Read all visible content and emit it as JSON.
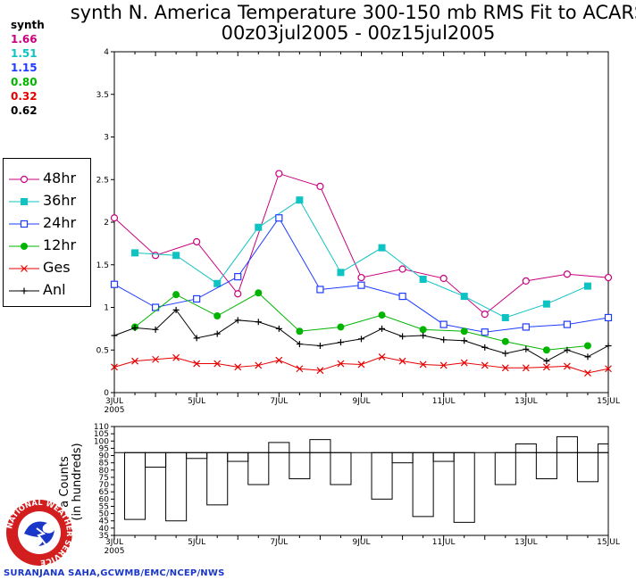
{
  "title": {
    "line1": "synth N. America Temperature 300-150 mb RMS Fit to ACARS",
    "line2": "00z03jul2005 - 00z15jul2005"
  },
  "summary": {
    "label": "synth",
    "values": [
      {
        "text": "1.66",
        "color": "#c8007e"
      },
      {
        "text": "1.51",
        "color": "#0fc3c3"
      },
      {
        "text": "1.15",
        "color": "#1e3cff"
      },
      {
        "text": "0.80",
        "color": "#00b400"
      },
      {
        "text": "0.32",
        "color": "#e60000"
      },
      {
        "text": "0.62",
        "color": "#000000"
      }
    ]
  },
  "legend": [
    {
      "label": "48hr",
      "color": "#c8007e",
      "marker": "open-circle"
    },
    {
      "label": "36hr",
      "color": "#0fc3c3",
      "marker": "filled-square"
    },
    {
      "label": "24hr",
      "color": "#1e3cff",
      "marker": "open-square"
    },
    {
      "label": "12hr",
      "color": "#00b400",
      "marker": "filled-circle"
    },
    {
      "label": "Ges",
      "color": "#e60000",
      "marker": "x"
    },
    {
      "label": "Anl",
      "color": "#000000",
      "marker": "plus"
    }
  ],
  "count_axis_label": {
    "line1": "a Counts",
    "line2": "(in hundreds)"
  },
  "credit": "SURANJANA SAHA,GCWMB/EMC/NCEP/NWS",
  "logo_text": "NATIONAL WEATHER SERVICE",
  "chart_data": [
    {
      "type": "line",
      "title": "synth N. America Temperature 300-150 mb RMS Fit to ACARS",
      "x": [
        3,
        3.5,
        4,
        4.5,
        5,
        5.5,
        6,
        6.5,
        7,
        7.5,
        8,
        8.5,
        9,
        9.5,
        10,
        10.5,
        11,
        11.5,
        12,
        12.5,
        13,
        13.5,
        14,
        14.5,
        15
      ],
      "xlim": [
        3,
        15
      ],
      "ylim": [
        0,
        4
      ],
      "x_tick_labels": [
        "3JUL",
        "5JUL",
        "7JUL",
        "9JUL",
        "11JUL",
        "13JUL",
        "15JUL"
      ],
      "x_tick_values": [
        3,
        5,
        7,
        9,
        11,
        13,
        15
      ],
      "x_year_label": "2005",
      "y_tick_labels": [
        "0",
        "0.5",
        "1",
        "1.5",
        "2",
        "2.5",
        "3",
        "3.5",
        "4"
      ],
      "y_tick_values": [
        0,
        0.5,
        1,
        1.5,
        2,
        2.5,
        3,
        3.5,
        4
      ],
      "series": [
        {
          "name": "48hr",
          "color": "#c8007e",
          "marker": "open-circle",
          "x": [
            3,
            4,
            5,
            6,
            7,
            8,
            9,
            10,
            11,
            12,
            13,
            14,
            15
          ],
          "values": [
            2.05,
            1.61,
            1.77,
            1.16,
            2.57,
            2.42,
            1.35,
            1.45,
            1.34,
            0.92,
            1.31,
            1.39,
            1.35
          ]
        },
        {
          "name": "36hr",
          "color": "#0fc3c3",
          "marker": "filled-square",
          "x": [
            3.5,
            4.5,
            5.5,
            6.5,
            7.5,
            8.5,
            9.5,
            10.5,
            11.5,
            12.5,
            13.5,
            14.5
          ],
          "values": [
            1.64,
            1.61,
            1.28,
            1.94,
            2.26,
            1.41,
            1.7,
            1.33,
            1.13,
            0.88,
            1.04,
            1.25
          ]
        },
        {
          "name": "24hr",
          "color": "#1e3cff",
          "marker": "open-square",
          "x": [
            3,
            4,
            5,
            6,
            7,
            8,
            9,
            10,
            11,
            12,
            13,
            14,
            15
          ],
          "values": [
            1.27,
            1.0,
            1.1,
            1.36,
            2.05,
            1.21,
            1.26,
            1.13,
            0.8,
            0.71,
            0.77,
            0.8,
            0.88
          ]
        },
        {
          "name": "12hr",
          "color": "#00b400",
          "marker": "filled-circle",
          "x": [
            3.5,
            4.5,
            5.5,
            6.5,
            7.5,
            8.5,
            9.5,
            10.5,
            11.5,
            12.5,
            13.5,
            14.5
          ],
          "values": [
            0.77,
            1.15,
            0.9,
            1.17,
            0.72,
            0.77,
            0.91,
            0.74,
            0.72,
            0.6,
            0.5,
            0.55
          ]
        },
        {
          "name": "Ges",
          "color": "#e60000",
          "marker": "x",
          "x": [
            3,
            3.5,
            4,
            4.5,
            5,
            5.5,
            6,
            6.5,
            7,
            7.5,
            8,
            8.5,
            9,
            9.5,
            10,
            10.5,
            11,
            11.5,
            12,
            12.5,
            13,
            13.5,
            14,
            14.5,
            15
          ],
          "values": [
            0.3,
            0.37,
            0.39,
            0.41,
            0.34,
            0.34,
            0.3,
            0.32,
            0.38,
            0.28,
            0.26,
            0.34,
            0.33,
            0.42,
            0.37,
            0.33,
            0.32,
            0.35,
            0.32,
            0.29,
            0.29,
            0.3,
            0.31,
            0.23,
            0.28
          ]
        },
        {
          "name": "Anl",
          "color": "#000000",
          "marker": "plus",
          "x": [
            3,
            3.5,
            4,
            4.5,
            5,
            5.5,
            6,
            6.5,
            7,
            7.5,
            8,
            8.5,
            9,
            9.5,
            10,
            10.5,
            11,
            11.5,
            12,
            12.5,
            13,
            13.5,
            14,
            14.5,
            15
          ],
          "values": [
            0.67,
            0.76,
            0.74,
            0.97,
            0.64,
            0.69,
            0.85,
            0.83,
            0.75,
            0.57,
            0.55,
            0.59,
            0.63,
            0.75,
            0.66,
            0.67,
            0.62,
            0.61,
            0.53,
            0.46,
            0.51,
            0.37,
            0.5,
            0.42,
            0.55
          ]
        }
      ]
    },
    {
      "type": "bar",
      "title": "Data Counts (in hundreds)",
      "ylabel": "a Counts (in hundreds)",
      "x": [
        3,
        3.5,
        4,
        4.5,
        5,
        5.5,
        6,
        6.5,
        7,
        7.5,
        8,
        8.5,
        9,
        9.5,
        10,
        10.5,
        11,
        11.5,
        12,
        12.5,
        13,
        13.5,
        14,
        14.5,
        15
      ],
      "xlim": [
        3,
        15
      ],
      "ylim": [
        35,
        110
      ],
      "reference_line": 92,
      "y_tick_values": [
        35,
        40,
        45,
        50,
        55,
        60,
        65,
        70,
        75,
        80,
        85,
        90,
        95,
        100,
        105,
        110
      ],
      "y_tick_labels": [
        "35",
        "40",
        "45",
        "50",
        "55",
        "60",
        "65",
        "70",
        "75",
        "80",
        "85",
        "90",
        "95",
        "100",
        "105",
        "110"
      ],
      "x_tick_labels": [
        "3JUL",
        "5JUL",
        "7JUL",
        "9JUL",
        "11JUL",
        "13JUL",
        "15JUL"
      ],
      "x_tick_values": [
        3,
        5,
        7,
        9,
        11,
        13,
        15
      ],
      "x_year_label": "2005",
      "values": [
        92,
        46,
        82,
        45,
        88,
        56,
        86,
        70,
        99,
        74,
        101,
        70,
        92,
        60,
        85,
        48,
        86,
        44,
        92,
        70,
        98,
        74,
        103,
        72,
        98
      ]
    }
  ]
}
